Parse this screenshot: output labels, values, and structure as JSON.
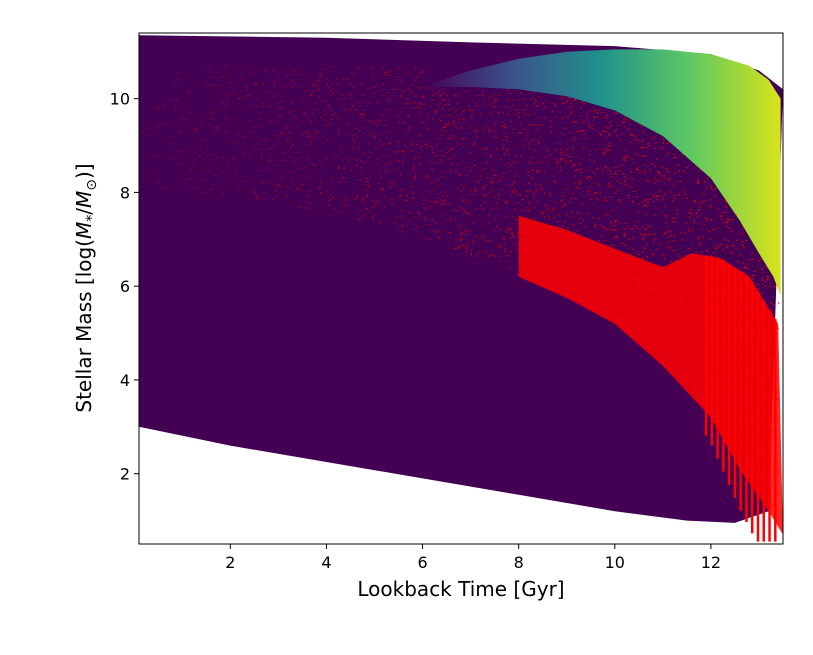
{
  "chart_data": {
    "type": "heatmap",
    "xlabel": "Lookback Time [Gyr]",
    "ylabel_pre": "Stellar Mass [log(",
    "ylabel_m": "M",
    "ylabel_sub1": "*",
    "ylabel_mid": "/",
    "ylabel_sub2": "⊙",
    "ylabel_post": ")]",
    "xlim": [
      0.1,
      13.5
    ],
    "ylim": [
      0.5,
      11.4
    ],
    "x_ticks": [
      {
        "value": 2,
        "label": "2"
      },
      {
        "value": 4,
        "label": "4"
      },
      {
        "value": 6,
        "label": "6"
      },
      {
        "value": 8,
        "label": "8"
      },
      {
        "value": 10,
        "label": "10"
      },
      {
        "value": 12,
        "label": "12"
      }
    ],
    "y_ticks": [
      {
        "value": 2,
        "label": "2"
      },
      {
        "value": 4,
        "label": "4"
      },
      {
        "value": 6,
        "label": "6"
      },
      {
        "value": 8,
        "label": "8"
      },
      {
        "value": 10,
        "label": "10"
      }
    ],
    "grid": false,
    "colors": {
      "background_region": "#440154",
      "scatter_points": "#ff0000",
      "gradient": [
        "#440154",
        "#3b528b",
        "#21918c",
        "#5ec962",
        "#d8e219"
      ]
    },
    "regions": {
      "upper_boundary": [
        [
          0.1,
          11.35
        ],
        [
          4.0,
          11.3
        ],
        [
          7.0,
          11.2
        ],
        [
          10.0,
          11.12
        ],
        [
          12.0,
          10.95
        ],
        [
          13.0,
          10.6
        ],
        [
          13.5,
          10.2
        ]
      ],
      "lower_boundary": [
        [
          0.1,
          3.0
        ],
        [
          2.0,
          2.6
        ],
        [
          4.0,
          2.25
        ],
        [
          6.0,
          1.9
        ],
        [
          8.0,
          1.55
        ],
        [
          10.0,
          1.2
        ],
        [
          11.5,
          1.0
        ],
        [
          12.5,
          0.95
        ],
        [
          13.2,
          1.2
        ]
      ],
      "inner_boundary": [
        [
          0.1,
          8.0
        ],
        [
          2.0,
          7.85
        ],
        [
          4.0,
          7.5
        ],
        [
          6.0,
          6.95
        ],
        [
          8.0,
          6.2
        ],
        [
          10.0,
          5.2
        ],
        [
          11.0,
          4.3
        ],
        [
          12.0,
          3.2
        ],
        [
          12.6,
          2.1
        ],
        [
          13.2,
          1.2
        ]
      ],
      "gradient_band_upper": [
        [
          6.0,
          10.25
        ],
        [
          7.0,
          10.6
        ],
        [
          8.0,
          10.85
        ],
        [
          9.0,
          11.0
        ],
        [
          10.0,
          11.05
        ],
        [
          11.0,
          11.05
        ],
        [
          12.0,
          10.95
        ],
        [
          12.8,
          10.7
        ],
        [
          13.2,
          10.4
        ],
        [
          13.45,
          10.0
        ]
      ],
      "gradient_band_lower": [
        [
          13.45,
          5.8
        ],
        [
          13.3,
          6.2
        ],
        [
          13.0,
          6.7
        ],
        [
          12.6,
          7.4
        ],
        [
          12.0,
          8.3
        ],
        [
          11.0,
          9.2
        ],
        [
          10.0,
          9.75
        ],
        [
          9.0,
          10.05
        ],
        [
          8.0,
          10.2
        ],
        [
          7.0,
          10.25
        ],
        [
          6.0,
          10.25
        ]
      ],
      "dense_red_upper": [
        [
          8.0,
          7.5
        ],
        [
          9.0,
          7.2
        ],
        [
          10.0,
          6.8
        ],
        [
          11.0,
          6.4
        ],
        [
          11.6,
          6.7
        ],
        [
          12.2,
          6.6
        ],
        [
          12.8,
          6.2
        ],
        [
          13.4,
          5.2
        ]
      ],
      "dense_red_lower": [
        [
          13.5,
          0.7
        ],
        [
          13.2,
          1.2
        ],
        [
          12.6,
          2.1
        ],
        [
          12.0,
          3.2
        ],
        [
          11.0,
          4.3
        ],
        [
          10.0,
          5.2
        ],
        [
          9.0,
          5.75
        ],
        [
          8.0,
          6.2
        ]
      ]
    }
  }
}
